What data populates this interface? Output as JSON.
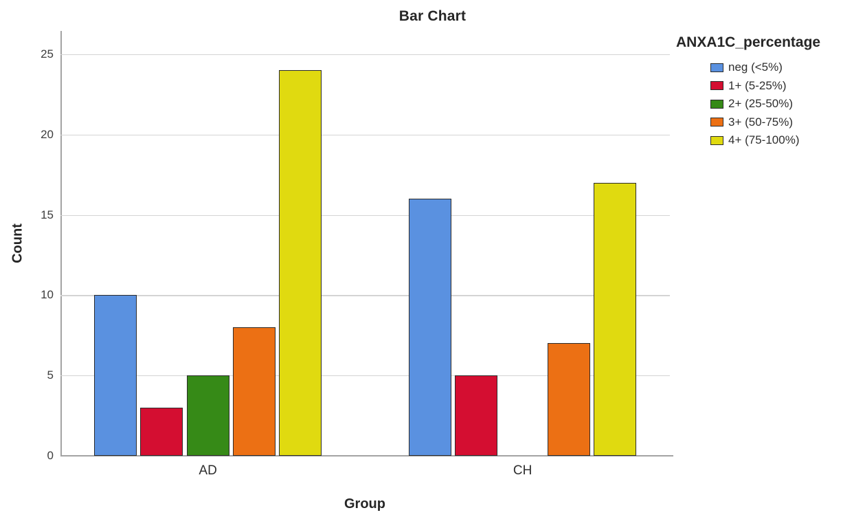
{
  "figure": {
    "title": "Bar Chart"
  },
  "chart_data": {
    "type": "bar",
    "title": "Bar Chart",
    "categories": [
      "AD",
      "CH"
    ],
    "series": [
      {
        "name": "neg (<5%)",
        "color": "#5A91E0",
        "values": [
          10,
          16
        ]
      },
      {
        "name": "1+ (5-25%)",
        "color": "#D40E31",
        "values": [
          3,
          5
        ]
      },
      {
        "name": "2+ (25-50%)",
        "color": "#368A17",
        "values": [
          5,
          0
        ]
      },
      {
        "name": "3+ (50-75%)",
        "color": "#EC7014",
        "values": [
          8,
          7
        ]
      },
      {
        "name": "4+ (75-100%)",
        "color": "#E0DA10",
        "values": [
          24,
          17
        ]
      }
    ],
    "xlabel": "Group",
    "ylabel": "Count",
    "ylim": [
      0,
      25
    ],
    "yticks": [
      0,
      5,
      10,
      15,
      20,
      25
    ],
    "grid": true,
    "legend": {
      "title": "ANXA1C_percentage",
      "position": "right"
    },
    "colors": {
      "axis_line": "#a3a3a3",
      "gridline": "#d4d4d4",
      "bar_border": "#2b2b2b",
      "background": "#ffffff"
    }
  }
}
